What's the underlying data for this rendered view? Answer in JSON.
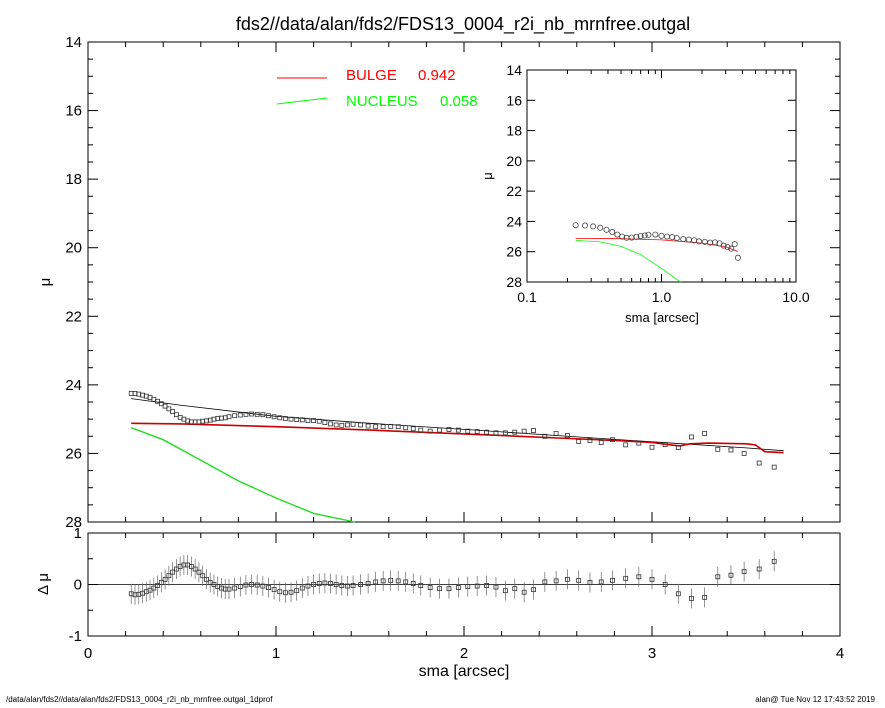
{
  "title": "fds2//data/alan/fds2/FDS13_0004_r2i_nb_mrnfree.outgal",
  "footer_left": "/data/alan/fds2//data/alan/fds2/FDS13_0004_r2i_nb_mrnfree.outgal_1dprof",
  "footer_right": "alan@  Tue Nov 12 17:43:52 2019",
  "colors": {
    "bulge": "#cc0000",
    "nucleus": "#22dd22",
    "axes": "#000000",
    "data": "#555555"
  },
  "legend": [
    {
      "line_label": "BULGE",
      "value": "0.942",
      "color": "#ff0000"
    },
    {
      "line_label": "NUCLEUS",
      "value": "0.058",
      "color": "#00ff00"
    }
  ],
  "chart_data": [
    {
      "id": "main",
      "type": "line",
      "ylabel": "μ",
      "xlabel": "",
      "xlim": [
        0,
        4
      ],
      "ylim": [
        28,
        14
      ],
      "yticks": [
        "14",
        "16",
        "18",
        "20",
        "22",
        "24",
        "26",
        "28"
      ],
      "series": [
        {
          "name": "data",
          "x": [
            0.23,
            0.25,
            0.27,
            0.29,
            0.31,
            0.33,
            0.35,
            0.37,
            0.39,
            0.41,
            0.43,
            0.45,
            0.47,
            0.49,
            0.51,
            0.53,
            0.55,
            0.57,
            0.59,
            0.61,
            0.63,
            0.65,
            0.67,
            0.69,
            0.71,
            0.73,
            0.75,
            0.78,
            0.81,
            0.84,
            0.87,
            0.9,
            0.93,
            0.96,
            0.99,
            1.02,
            1.05,
            1.08,
            1.11,
            1.14,
            1.17,
            1.2,
            1.23,
            1.26,
            1.29,
            1.32,
            1.35,
            1.38,
            1.41,
            1.45,
            1.49,
            1.53,
            1.57,
            1.61,
            1.65,
            1.69,
            1.73,
            1.77,
            1.82,
            1.87,
            1.92,
            1.97,
            2.02,
            2.07,
            2.12,
            2.17,
            2.22,
            2.27,
            2.32,
            2.37,
            2.43,
            2.49,
            2.55,
            2.61,
            2.67,
            2.73,
            2.79,
            2.86,
            2.93,
            3.0,
            3.07,
            3.14,
            3.21,
            3.28,
            3.35,
            3.42,
            3.49,
            3.57,
            3.65
          ],
          "y": [
            24.25,
            24.25,
            24.27,
            24.3,
            24.33,
            24.37,
            24.42,
            24.48,
            24.55,
            24.62,
            24.7,
            24.78,
            24.87,
            24.95,
            25.0,
            25.05,
            25.08,
            25.08,
            25.08,
            25.06,
            25.05,
            25.03,
            25.0,
            24.98,
            24.97,
            24.96,
            24.93,
            24.9,
            24.88,
            24.86,
            24.85,
            24.86,
            24.87,
            24.9,
            24.93,
            24.96,
            24.98,
            25.0,
            25.01,
            25.02,
            25.04,
            25.04,
            25.06,
            25.1,
            25.14,
            25.17,
            25.18,
            25.17,
            25.15,
            25.17,
            25.2,
            25.22,
            25.22,
            25.21,
            25.22,
            25.25,
            25.28,
            25.32,
            25.35,
            25.32,
            25.3,
            25.32,
            25.35,
            25.36,
            25.38,
            25.4,
            25.4,
            25.38,
            25.35,
            25.33,
            25.5,
            25.42,
            25.48,
            25.65,
            25.62,
            25.68,
            25.6,
            25.75,
            25.7,
            25.82,
            25.74,
            25.83,
            25.52,
            25.42,
            25.88,
            25.9,
            26.0,
            26.28,
            26.4
          ]
        },
        {
          "name": "model",
          "x": [
            0.23,
            0.5,
            1.0,
            1.5,
            2.0,
            2.5,
            3.0,
            3.5,
            3.7
          ],
          "y": [
            24.4,
            24.6,
            24.92,
            25.12,
            25.3,
            25.48,
            25.66,
            25.84,
            25.92
          ]
        },
        {
          "name": "BULGE",
          "x": [
            0.23,
            0.5,
            1.0,
            1.5,
            2.0,
            2.5,
            2.8,
            3.0,
            3.1,
            3.15,
            3.2,
            3.3,
            3.5,
            3.55,
            3.6,
            3.7
          ],
          "y": [
            25.12,
            25.14,
            25.22,
            25.32,
            25.43,
            25.55,
            25.62,
            25.68,
            25.75,
            25.78,
            25.72,
            25.7,
            25.72,
            25.75,
            25.95,
            25.98
          ]
        },
        {
          "name": "NUCLEUS",
          "x": [
            0.23,
            0.4,
            0.6,
            0.8,
            1.0,
            1.2,
            1.42
          ],
          "y": [
            25.25,
            25.6,
            26.2,
            26.8,
            27.3,
            27.75,
            28.0
          ]
        }
      ]
    },
    {
      "id": "residual",
      "type": "scatter",
      "ylabel": "Δ μ",
      "xlabel": "sma [arcsec]",
      "xlim": [
        0,
        4
      ],
      "ylim": [
        -1,
        1
      ],
      "xticks": [
        "0",
        "1",
        "2",
        "3",
        "4"
      ],
      "yticks": [
        "-1",
        "0",
        "1"
      ],
      "series": [
        {
          "name": "residual",
          "x": [
            0.23,
            0.25,
            0.27,
            0.29,
            0.31,
            0.33,
            0.35,
            0.37,
            0.39,
            0.41,
            0.43,
            0.45,
            0.47,
            0.49,
            0.51,
            0.53,
            0.55,
            0.57,
            0.59,
            0.61,
            0.63,
            0.65,
            0.67,
            0.69,
            0.71,
            0.73,
            0.75,
            0.78,
            0.81,
            0.84,
            0.87,
            0.9,
            0.93,
            0.96,
            0.99,
            1.02,
            1.05,
            1.08,
            1.11,
            1.14,
            1.17,
            1.2,
            1.23,
            1.26,
            1.29,
            1.32,
            1.35,
            1.38,
            1.41,
            1.45,
            1.49,
            1.53,
            1.57,
            1.61,
            1.65,
            1.69,
            1.73,
            1.77,
            1.82,
            1.87,
            1.92,
            1.97,
            2.02,
            2.07,
            2.12,
            2.17,
            2.22,
            2.27,
            2.32,
            2.37,
            2.43,
            2.49,
            2.55,
            2.61,
            2.67,
            2.73,
            2.79,
            2.86,
            2.93,
            3.0,
            3.07,
            3.14,
            3.21,
            3.28,
            3.35,
            3.42,
            3.49,
            3.57,
            3.65
          ],
          "y": [
            -0.18,
            -0.2,
            -0.19,
            -0.17,
            -0.14,
            -0.11,
            -0.07,
            -0.02,
            0.04,
            0.1,
            0.17,
            0.24,
            0.3,
            0.35,
            0.38,
            0.38,
            0.35,
            0.3,
            0.24,
            0.17,
            0.1,
            0.04,
            0.0,
            -0.04,
            -0.07,
            -0.09,
            -0.09,
            -0.07,
            -0.04,
            -0.01,
            0.0,
            -0.01,
            -0.03,
            -0.06,
            -0.1,
            -0.14,
            -0.16,
            -0.15,
            -0.12,
            -0.07,
            -0.03,
            0.0,
            0.02,
            0.03,
            0.02,
            0.0,
            -0.02,
            -0.03,
            -0.02,
            0.0,
            0.02,
            0.05,
            0.07,
            0.08,
            0.07,
            0.05,
            0.02,
            -0.02,
            -0.06,
            -0.08,
            -0.08,
            -0.06,
            -0.04,
            -0.03,
            -0.02,
            -0.05,
            -0.12,
            -0.08,
            -0.15,
            -0.1,
            0.05,
            0.07,
            0.1,
            0.08,
            0.04,
            0.05,
            0.08,
            0.12,
            0.15,
            0.1,
            0.0,
            -0.18,
            -0.27,
            -0.25,
            0.15,
            0.18,
            0.25,
            0.3,
            0.45
          ]
        }
      ]
    },
    {
      "id": "inset",
      "type": "line",
      "ylabel": "μ",
      "xlabel": "sma [arcsec]",
      "xscale": "log",
      "xlim": [
        0.1,
        10
      ],
      "ylim": [
        28,
        14
      ],
      "xticks": [
        "0.1",
        "1.0",
        "10.0"
      ],
      "yticks": [
        "14",
        "16",
        "18",
        "20",
        "22",
        "24",
        "26",
        "28"
      ],
      "series": [
        {
          "name": "data",
          "x": [
            0.23,
            0.27,
            0.31,
            0.35,
            0.39,
            0.43,
            0.47,
            0.51,
            0.55,
            0.6,
            0.65,
            0.7,
            0.75,
            0.8,
            0.9,
            1.0,
            1.1,
            1.2,
            1.3,
            1.45,
            1.6,
            1.75,
            1.9,
            2.1,
            2.3,
            2.5,
            2.7,
            2.9,
            3.1,
            3.3,
            3.5,
            3.7
          ],
          "y": [
            24.25,
            24.27,
            24.33,
            24.42,
            24.55,
            24.7,
            24.87,
            25.0,
            25.08,
            25.07,
            25.02,
            24.97,
            24.93,
            24.88,
            24.87,
            24.95,
            25.0,
            25.04,
            25.1,
            25.17,
            25.2,
            25.25,
            25.32,
            25.35,
            25.4,
            25.38,
            25.45,
            25.6,
            25.7,
            25.8,
            25.5,
            26.4
          ]
        },
        {
          "name": "BULGE",
          "x": [
            0.23,
            0.5,
            1.0,
            2.0,
            3.0,
            3.7
          ],
          "y": [
            25.12,
            25.14,
            25.22,
            25.43,
            25.68,
            25.98
          ]
        },
        {
          "name": "NUCLEUS",
          "x": [
            0.23,
            0.35,
            0.5,
            0.7,
            1.0,
            1.4
          ],
          "y": [
            25.25,
            25.35,
            25.65,
            26.2,
            27.1,
            28.2
          ]
        }
      ]
    }
  ]
}
